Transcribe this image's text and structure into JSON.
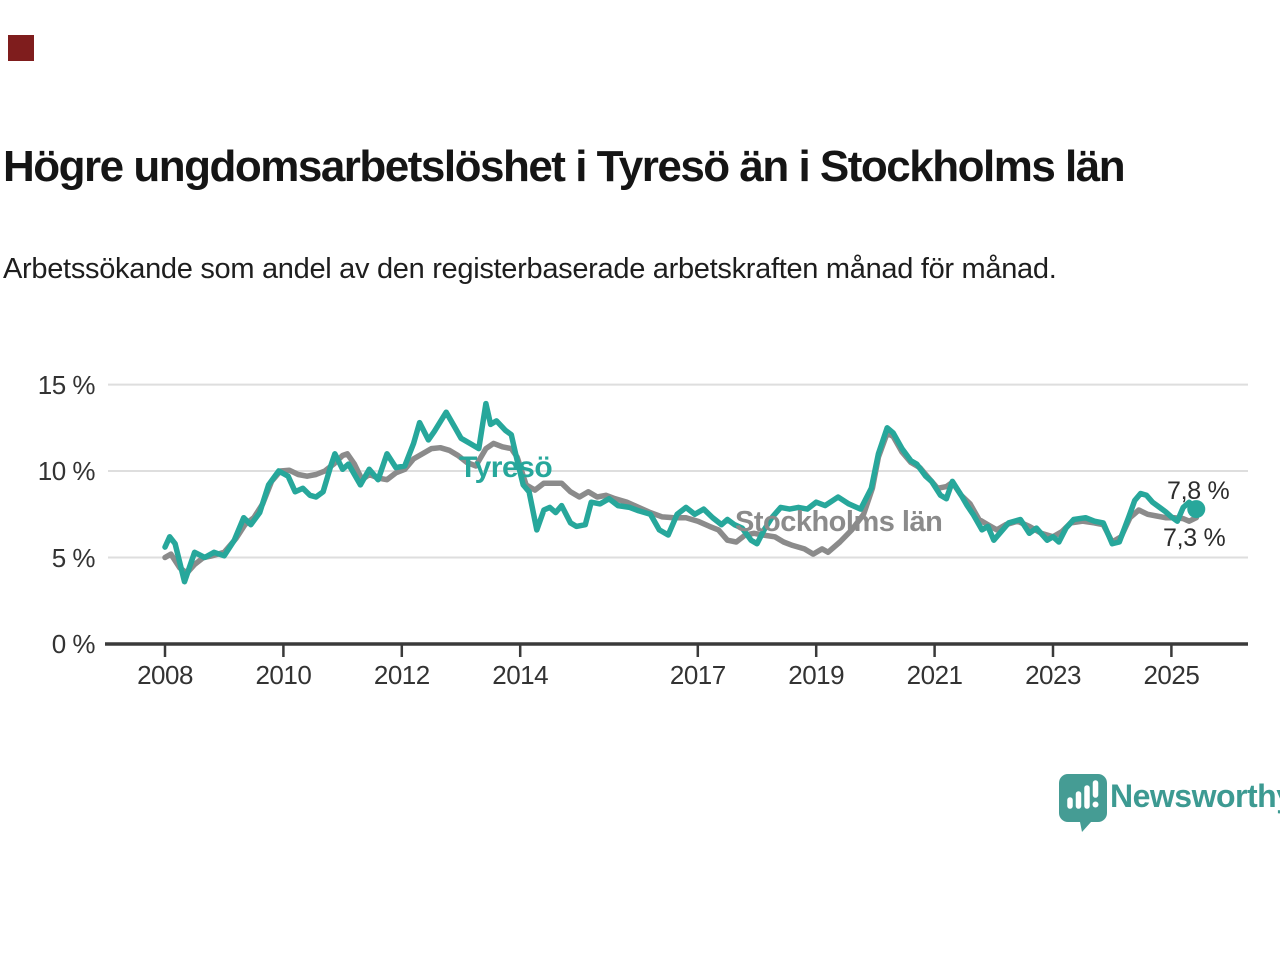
{
  "page": {
    "background": "#ffffff"
  },
  "corner_marker": {
    "color": "#7F1D1D"
  },
  "header": {
    "title": "Högre ungdomsarbetslöshet i Tyresö än i Stockholms län",
    "subtitle": "Arbetssökande som andel av den registerbaserade arbetskraften månad för månad."
  },
  "branding": {
    "logo_text": "Newsworthy",
    "logo_text_color": "#3d9a92",
    "logo_bubble_color": "#459c94",
    "logo_icon": "bar-chart-speech-bubble-icon"
  },
  "chart_data": {
    "type": "line",
    "title": "Högre ungdomsarbetslöshet i Tyresö än i Stockholms län",
    "subtitle": "Arbetssökande som andel av den registerbaserade arbetskraften månad för månad.",
    "xlabel": "",
    "ylabel": "",
    "grid": "horizontal",
    "ylim": [
      0,
      15.5
    ],
    "x_range": [
      2008,
      2025.5
    ],
    "y_ticks": [
      {
        "value": 15,
        "label": "15 %"
      },
      {
        "value": 10,
        "label": "10 %"
      },
      {
        "value": 5,
        "label": "5 %"
      },
      {
        "value": 0,
        "label": "0 %"
      }
    ],
    "x_ticks": [
      {
        "value": 2008,
        "label": "2008"
      },
      {
        "value": 2010,
        "label": "2010"
      },
      {
        "value": 2012,
        "label": "2012"
      },
      {
        "value": 2014,
        "label": "2014"
      },
      {
        "value": 2017,
        "label": "2017"
      },
      {
        "value": 2019,
        "label": "2019"
      },
      {
        "value": 2021,
        "label": "2021"
      },
      {
        "value": 2023,
        "label": "2023"
      },
      {
        "value": 2025,
        "label": "2025"
      }
    ],
    "gridline_color": "#dedede",
    "axis_color": "#3a3a3a",
    "series": [
      {
        "name": "Stockholms län",
        "color": "#8b8b8b",
        "end_label": "7,3 %",
        "end_value": 7.3,
        "points": [
          [
            2008.0,
            5.0
          ],
          [
            2008.1,
            5.2
          ],
          [
            2008.25,
            4.4
          ],
          [
            2008.37,
            4.1
          ],
          [
            2008.5,
            4.6
          ],
          [
            2008.65,
            5.0
          ],
          [
            2008.8,
            5.1
          ],
          [
            2009.0,
            5.3
          ],
          [
            2009.2,
            6.1
          ],
          [
            2009.35,
            6.9
          ],
          [
            2009.5,
            7.3
          ],
          [
            2009.65,
            8.1
          ],
          [
            2009.8,
            9.4
          ],
          [
            2009.95,
            10.0
          ],
          [
            2010.1,
            10.05
          ],
          [
            2010.25,
            9.8
          ],
          [
            2010.4,
            9.7
          ],
          [
            2010.55,
            9.8
          ],
          [
            2010.7,
            10.0
          ],
          [
            2010.85,
            10.4
          ],
          [
            2011.0,
            10.9
          ],
          [
            2011.08,
            11.0
          ],
          [
            2011.2,
            10.4
          ],
          [
            2011.33,
            9.5
          ],
          [
            2011.45,
            9.8
          ],
          [
            2011.6,
            9.6
          ],
          [
            2011.75,
            9.5
          ],
          [
            2011.9,
            9.9
          ],
          [
            2012.05,
            10.1
          ],
          [
            2012.2,
            10.7
          ],
          [
            2012.35,
            11.0
          ],
          [
            2012.5,
            11.3
          ],
          [
            2012.65,
            11.35
          ],
          [
            2012.8,
            11.2
          ],
          [
            2012.95,
            10.9
          ],
          [
            2013.1,
            10.5
          ],
          [
            2013.25,
            10.3
          ],
          [
            2013.42,
            11.3
          ],
          [
            2013.55,
            11.6
          ],
          [
            2013.7,
            11.4
          ],
          [
            2013.85,
            11.3
          ],
          [
            2013.95,
            10.8
          ],
          [
            2014.1,
            9.2
          ],
          [
            2014.25,
            8.9
          ],
          [
            2014.4,
            9.3
          ],
          [
            2014.55,
            9.3
          ],
          [
            2014.7,
            9.3
          ],
          [
            2014.85,
            8.8
          ],
          [
            2015.0,
            8.5
          ],
          [
            2015.15,
            8.8
          ],
          [
            2015.3,
            8.5
          ],
          [
            2015.45,
            8.6
          ],
          [
            2015.6,
            8.4
          ],
          [
            2015.8,
            8.2
          ],
          [
            2016.0,
            7.9
          ],
          [
            2016.2,
            7.6
          ],
          [
            2016.4,
            7.35
          ],
          [
            2016.6,
            7.3
          ],
          [
            2016.8,
            7.3
          ],
          [
            2017.0,
            7.1
          ],
          [
            2017.2,
            6.8
          ],
          [
            2017.35,
            6.6
          ],
          [
            2017.5,
            6.0
          ],
          [
            2017.65,
            5.9
          ],
          [
            2017.8,
            6.3
          ],
          [
            2017.95,
            6.4
          ],
          [
            2018.1,
            6.3
          ],
          [
            2018.3,
            6.2
          ],
          [
            2018.45,
            5.9
          ],
          [
            2018.6,
            5.7
          ],
          [
            2018.8,
            5.5
          ],
          [
            2018.95,
            5.2
          ],
          [
            2019.1,
            5.5
          ],
          [
            2019.2,
            5.3
          ],
          [
            2019.4,
            5.9
          ],
          [
            2019.6,
            6.6
          ],
          [
            2019.8,
            7.5
          ],
          [
            2019.95,
            9.0
          ],
          [
            2020.05,
            10.8
          ],
          [
            2020.2,
            12.2
          ],
          [
            2020.3,
            12.0
          ],
          [
            2020.45,
            11.1
          ],
          [
            2020.6,
            10.5
          ],
          [
            2020.75,
            10.2
          ],
          [
            2020.9,
            9.6
          ],
          [
            2021.05,
            9.0
          ],
          [
            2021.2,
            9.1
          ],
          [
            2021.3,
            9.35
          ],
          [
            2021.45,
            8.6
          ],
          [
            2021.6,
            8.1
          ],
          [
            2021.75,
            7.2
          ],
          [
            2021.9,
            6.9
          ],
          [
            2022.05,
            6.6
          ],
          [
            2022.2,
            6.9
          ],
          [
            2022.4,
            7.1
          ],
          [
            2022.6,
            6.8
          ],
          [
            2022.8,
            6.4
          ],
          [
            2023.0,
            6.2
          ],
          [
            2023.15,
            6.5
          ],
          [
            2023.3,
            7.0
          ],
          [
            2023.5,
            7.1
          ],
          [
            2023.7,
            7.0
          ],
          [
            2023.85,
            6.9
          ],
          [
            2024.0,
            5.9
          ],
          [
            2024.15,
            6.2
          ],
          [
            2024.3,
            7.3
          ],
          [
            2024.45,
            7.75
          ],
          [
            2024.6,
            7.5
          ],
          [
            2024.75,
            7.4
          ],
          [
            2024.9,
            7.3
          ],
          [
            2025.05,
            7.3
          ],
          [
            2025.2,
            7.25
          ],
          [
            2025.3,
            7.1
          ],
          [
            2025.42,
            7.3
          ]
        ]
      },
      {
        "name": "Tyresö",
        "color": "#27a79b",
        "end_label": "7,8 %",
        "end_value": 7.8,
        "end_dot": [
          2025.42,
          7.8
        ],
        "points": [
          [
            2008.0,
            5.6
          ],
          [
            2008.08,
            6.2
          ],
          [
            2008.17,
            5.8
          ],
          [
            2008.33,
            3.6
          ],
          [
            2008.5,
            5.3
          ],
          [
            2008.67,
            5.0
          ],
          [
            2008.83,
            5.3
          ],
          [
            2009.0,
            5.1
          ],
          [
            2009.17,
            6.0
          ],
          [
            2009.33,
            7.3
          ],
          [
            2009.45,
            6.9
          ],
          [
            2009.6,
            7.6
          ],
          [
            2009.75,
            9.2
          ],
          [
            2009.92,
            10.0
          ],
          [
            2010.08,
            9.7
          ],
          [
            2010.2,
            8.8
          ],
          [
            2010.33,
            9.0
          ],
          [
            2010.45,
            8.6
          ],
          [
            2010.55,
            8.5
          ],
          [
            2010.67,
            8.8
          ],
          [
            2010.8,
            10.3
          ],
          [
            2010.87,
            11.0
          ],
          [
            2011.0,
            10.1
          ],
          [
            2011.1,
            10.4
          ],
          [
            2011.3,
            9.2
          ],
          [
            2011.45,
            10.1
          ],
          [
            2011.6,
            9.5
          ],
          [
            2011.75,
            11.0
          ],
          [
            2011.9,
            10.2
          ],
          [
            2012.05,
            10.3
          ],
          [
            2012.2,
            11.6
          ],
          [
            2012.3,
            12.8
          ],
          [
            2012.45,
            11.8
          ],
          [
            2012.55,
            12.3
          ],
          [
            2012.75,
            13.4
          ],
          [
            2012.9,
            12.5
          ],
          [
            2013.0,
            11.9
          ],
          [
            2013.15,
            11.6
          ],
          [
            2013.3,
            11.3
          ],
          [
            2013.42,
            13.9
          ],
          [
            2013.5,
            12.7
          ],
          [
            2013.6,
            12.9
          ],
          [
            2013.75,
            12.35
          ],
          [
            2013.85,
            12.1
          ],
          [
            2013.95,
            10.6
          ],
          [
            2014.05,
            9.2
          ],
          [
            2014.15,
            8.8
          ],
          [
            2014.28,
            6.6
          ],
          [
            2014.4,
            7.75
          ],
          [
            2014.5,
            7.9
          ],
          [
            2014.6,
            7.6
          ],
          [
            2014.7,
            8.0
          ],
          [
            2014.85,
            7.0
          ],
          [
            2014.95,
            6.8
          ],
          [
            2015.1,
            6.9
          ],
          [
            2015.2,
            8.2
          ],
          [
            2015.35,
            8.1
          ],
          [
            2015.5,
            8.4
          ],
          [
            2015.65,
            8.0
          ],
          [
            2015.85,
            7.9
          ],
          [
            2016.0,
            7.7
          ],
          [
            2016.2,
            7.5
          ],
          [
            2016.35,
            6.6
          ],
          [
            2016.5,
            6.3
          ],
          [
            2016.65,
            7.5
          ],
          [
            2016.8,
            7.9
          ],
          [
            2016.95,
            7.5
          ],
          [
            2017.1,
            7.8
          ],
          [
            2017.25,
            7.3
          ],
          [
            2017.4,
            6.9
          ],
          [
            2017.5,
            7.2
          ],
          [
            2017.62,
            6.9
          ],
          [
            2017.75,
            6.7
          ],
          [
            2017.9,
            6.0
          ],
          [
            2018.0,
            5.8
          ],
          [
            2018.12,
            6.6
          ],
          [
            2018.25,
            7.3
          ],
          [
            2018.4,
            7.9
          ],
          [
            2018.55,
            7.8
          ],
          [
            2018.7,
            7.9
          ],
          [
            2018.85,
            7.8
          ],
          [
            2019.0,
            8.2
          ],
          [
            2019.15,
            8.0
          ],
          [
            2019.37,
            8.5
          ],
          [
            2019.55,
            8.1
          ],
          [
            2019.75,
            7.8
          ],
          [
            2019.93,
            9.0
          ],
          [
            2020.05,
            11.0
          ],
          [
            2020.2,
            12.5
          ],
          [
            2020.3,
            12.2
          ],
          [
            2020.45,
            11.3
          ],
          [
            2020.6,
            10.6
          ],
          [
            2020.7,
            10.4
          ],
          [
            2020.85,
            9.7
          ],
          [
            2020.95,
            9.4
          ],
          [
            2021.1,
            8.6
          ],
          [
            2021.2,
            8.4
          ],
          [
            2021.3,
            9.4
          ],
          [
            2021.45,
            8.6
          ],
          [
            2021.55,
            8.0
          ],
          [
            2021.65,
            7.5
          ],
          [
            2021.8,
            6.6
          ],
          [
            2021.9,
            6.8
          ],
          [
            2022.0,
            6.0
          ],
          [
            2022.1,
            6.4
          ],
          [
            2022.25,
            7.0
          ],
          [
            2022.45,
            7.2
          ],
          [
            2022.6,
            6.4
          ],
          [
            2022.72,
            6.7
          ],
          [
            2022.9,
            6.0
          ],
          [
            2023.0,
            6.2
          ],
          [
            2023.1,
            5.9
          ],
          [
            2023.22,
            6.7
          ],
          [
            2023.35,
            7.2
          ],
          [
            2023.55,
            7.3
          ],
          [
            2023.7,
            7.1
          ],
          [
            2023.85,
            7.0
          ],
          [
            2024.0,
            5.8
          ],
          [
            2024.12,
            5.9
          ],
          [
            2024.28,
            7.35
          ],
          [
            2024.38,
            8.3
          ],
          [
            2024.48,
            8.7
          ],
          [
            2024.58,
            8.6
          ],
          [
            2024.68,
            8.2
          ],
          [
            2024.8,
            7.9
          ],
          [
            2024.9,
            7.65
          ],
          [
            2025.0,
            7.35
          ],
          [
            2025.1,
            7.1
          ],
          [
            2025.2,
            7.9
          ],
          [
            2025.3,
            8.2
          ],
          [
            2025.42,
            7.8
          ]
        ]
      }
    ],
    "legend": [
      {
        "label": "Tyresö",
        "color": "#27a79b",
        "position": "inline-left-of-line"
      },
      {
        "label": "Stockholms län",
        "color": "#8b8b8b",
        "position": "inline-on-line"
      }
    ]
  }
}
